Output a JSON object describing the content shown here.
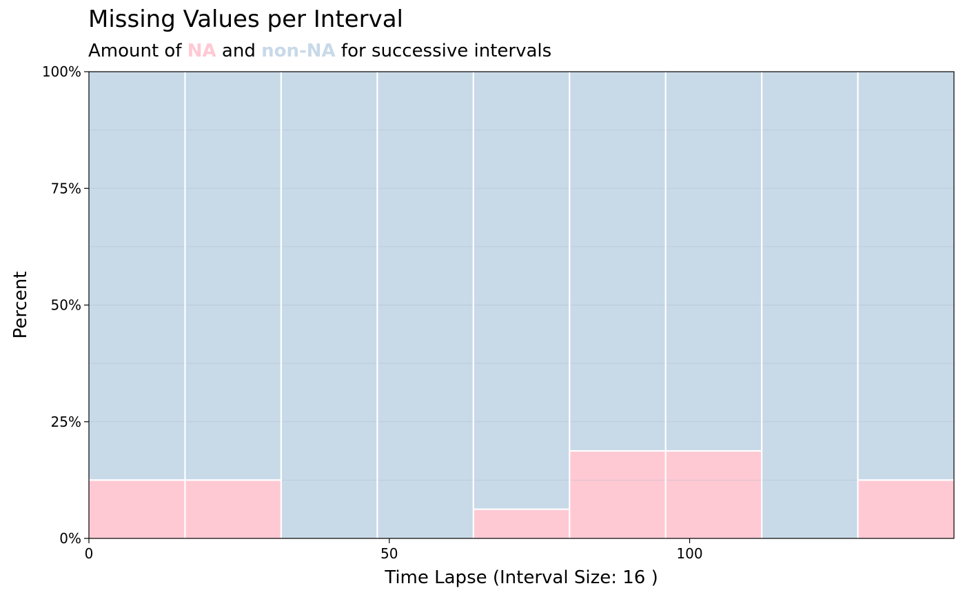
{
  "chart_data": {
    "type": "bar",
    "title": "Missing Values per Interval",
    "subtitle": {
      "prefix": "Amount of ",
      "na_label": "NA",
      "middle": " and ",
      "non_na_label": "non-NA",
      "suffix": " for successive intervals"
    },
    "xlabel": "Time Lapse (Interval Size: 16 )",
    "ylabel": "Percent",
    "interval_size": 16,
    "xlim": [
      0,
      144
    ],
    "ylim": [
      0,
      100
    ],
    "x_ticks": [
      0,
      50,
      100
    ],
    "x_tick_labels": [
      "0",
      "50",
      "100"
    ],
    "y_ticks": [
      0,
      25,
      50,
      75,
      100
    ],
    "y_tick_labels": [
      "0%",
      "25%",
      "50%",
      "75%",
      "100%"
    ],
    "grid": true,
    "colors": {
      "na": "#FFC9D4",
      "non_na": "#C8D9E8",
      "separator": "#FFFFFF",
      "grid": "#A9B8C6"
    },
    "intervals": [
      {
        "start": 0,
        "end": 16,
        "na_percent": 12.5
      },
      {
        "start": 16,
        "end": 32,
        "na_percent": 12.5
      },
      {
        "start": 32,
        "end": 48,
        "na_percent": 0
      },
      {
        "start": 48,
        "end": 64,
        "na_percent": 0
      },
      {
        "start": 64,
        "end": 80,
        "na_percent": 6.25
      },
      {
        "start": 80,
        "end": 96,
        "na_percent": 18.75
      },
      {
        "start": 96,
        "end": 112,
        "na_percent": 18.75
      },
      {
        "start": 112,
        "end": 128,
        "na_percent": 0
      },
      {
        "start": 128,
        "end": 144,
        "na_percent": 12.5
      }
    ]
  }
}
